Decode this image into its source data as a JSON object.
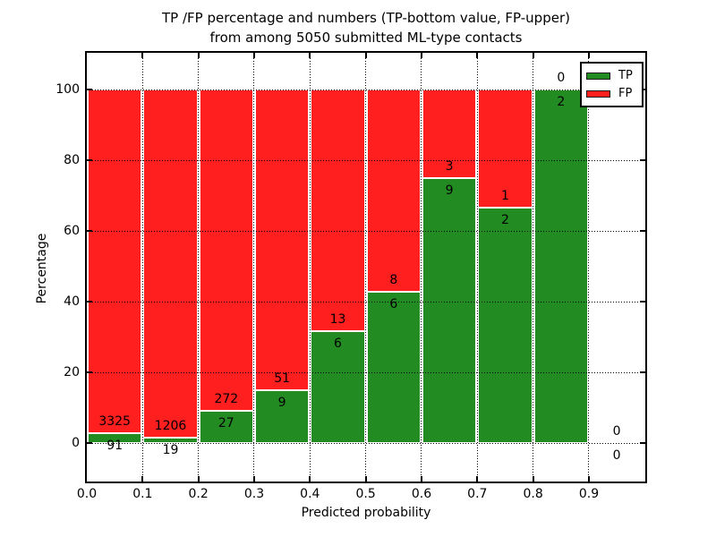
{
  "title": {
    "line1": "TP /FP percentage and numbers (TP-bottom value, FP-upper)",
    "line2": "from among 5050 submitted ML-type contacts"
  },
  "chart_data": {
    "type": "bar",
    "stacked": true,
    "title": "TP /FP percentage and numbers (TP-bottom value, FP-upper)\nfrom among 5050 submitted ML-type contacts",
    "xlabel": "Predicted probability",
    "ylabel": "Percentage",
    "xlim": [
      0.0,
      1.0
    ],
    "ylim": [
      -11,
      110
    ],
    "grid": true,
    "gridstyle": "dotted",
    "legend_position": "upper right",
    "total_contacts": 5050,
    "bin_width": 0.1,
    "bin_starts": [
      0.0,
      0.1,
      0.2,
      0.3,
      0.4,
      0.5,
      0.6,
      0.7,
      0.8,
      0.9
    ],
    "x_tick_labels": [
      "0.0",
      "0.1",
      "0.2",
      "0.3",
      "0.4",
      "0.5",
      "0.6",
      "0.7",
      "0.8",
      "0.9"
    ],
    "y_tick_values": [
      0,
      20,
      40,
      60,
      80,
      100
    ],
    "y_tick_labels": [
      "0",
      "20",
      "40",
      "60",
      "80",
      "100"
    ],
    "bar_semantics": "Bars show TP percentage (green, bottom) stacked with FP percentage (red, top) to 100% per bin; annotated numbers are raw counts: FP above the boundary, TP below it.",
    "series": [
      {
        "name": "TP",
        "color": "#228b22",
        "counts": [
          91,
          19,
          27,
          9,
          6,
          6,
          9,
          2,
          2,
          0
        ]
      },
      {
        "name": "FP",
        "color": "#ff1f1f",
        "counts": [
          3325,
          1206,
          272,
          51,
          13,
          8,
          3,
          1,
          0,
          0
        ]
      }
    ]
  },
  "legend": {
    "items": [
      {
        "label": "TP",
        "color": "#228b22"
      },
      {
        "label": "FP",
        "color": "#ff1f1f"
      }
    ]
  }
}
